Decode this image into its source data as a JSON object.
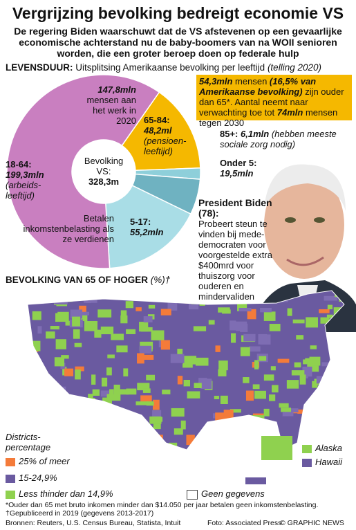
{
  "title": "Vergrijzing bevolking bedreigt economie VS",
  "subtitle": "De regering Biden waarschuwt dat de VS afstevenen op een gevaarlijke economische achterstand nu de baby-boomers van na WOII senioren worden, die een groter beroep doen op federale hulp",
  "chart_data": {
    "type": "pie",
    "title": "LEVENSDUUR:",
    "subtitle": "Uitsplitsing Amerikaanse bevolking per leeftijd",
    "note": "(telling 2020)",
    "categories": [
      "65-84:",
      "85+:",
      "Onder 5:",
      "5-17:",
      "18-64:"
    ],
    "values": [
      48.2,
      6.1,
      19.5,
      55.2,
      199.3
    ],
    "value_labels": [
      "48,2ml",
      "6,1mln",
      "19,5mln",
      "55,2mln",
      "199,3mln"
    ],
    "descriptions": [
      "(pensioen-leeftijd)",
      "(hebben meeste sociale zorg nodig)",
      null,
      null,
      "(arbeids-leeftijd)"
    ],
    "colors": [
      "#f5b800",
      "#8ecfda",
      "#6fb2c1",
      "#a9dde6",
      "#c97fc0"
    ],
    "center_label": "Bevolking VS:",
    "center_value": "328,3m",
    "working": {
      "value": "147,8mln",
      "text": "mensen aan het werk in 2020"
    },
    "tax_note": "Betalen inkomstenbelasting als ze verdienen"
  },
  "box": [
    "54,3mln",
    "mensen",
    "(16,5% van Amerikaanse bevolking)",
    "zijn ouder dan 65*. Aantal neemt naar verwachting toe tot",
    "74mln",
    "mensen tegen 2030"
  ],
  "biden": {
    "name": "President Biden (78):",
    "text": "Probeert steun te vinden bij mede-democraten voor voorgestelde extra $400mrd voor thuiszorg voor ouderen en mindervaliden"
  },
  "map": {
    "title": "BEVOLKING VAN 65 OF HOGER",
    "unit": "(%)†",
    "legend_title": "Districts-percentage",
    "legend": [
      "25% of meer",
      "15-24,9%",
      "Less thinder dan 14,9%"
    ],
    "alaska": "Alaska",
    "hawaii": "Hawaii",
    "no_data": "Geen gegevens"
  },
  "footer": {
    "note": "*Ouder dan 65 met bruto inkomen minder dan $14.050 per jaar betalen geen inkomstenbelasting. †Gepubliceerd in 2019 (gegevens 2013-2017)",
    "sources": "Bronnen: Reuters, U.S. Census Bureau, Statista, Intuit",
    "photo": "Foto: Associated Press",
    "copyright": "© GRAPHIC NEWS"
  }
}
